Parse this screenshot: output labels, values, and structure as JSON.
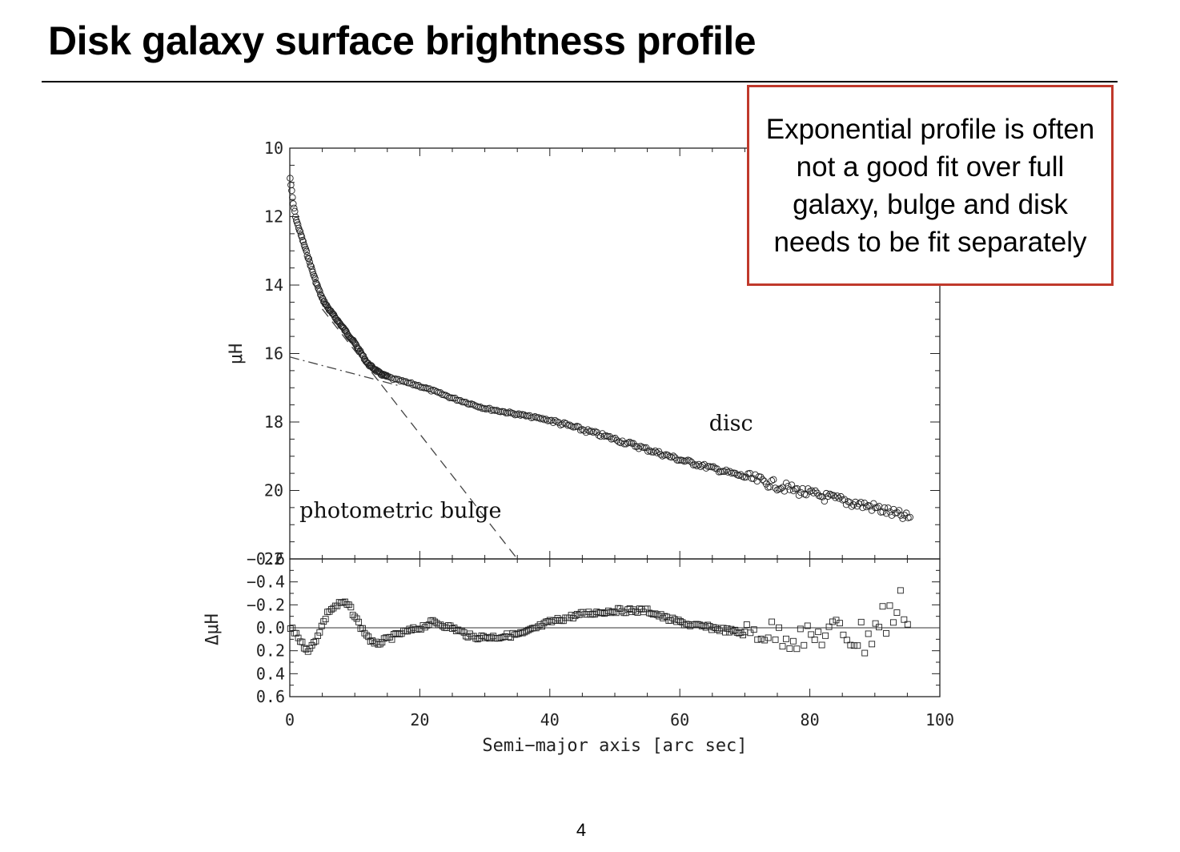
{
  "slide": {
    "title": "Disk galaxy surface brightness profile",
    "callout_text": "Exponential profile is often not a good fit over full galaxy, bulge and disk needs to be fit separately",
    "callout_border_color": "#c0392b",
    "page_number": "4"
  },
  "chart_data": [
    {
      "type": "scatter",
      "panel": "upper",
      "title": "",
      "xlabel": "",
      "ylabel": "μH",
      "xlim": [
        0,
        100
      ],
      "ylim": [
        22,
        10
      ],
      "y_inverted": true,
      "y_ticks": [
        10,
        12,
        14,
        16,
        18,
        20,
        22
      ],
      "marker": "open-circle",
      "profile_knots": [
        {
          "x": 0.0,
          "y": 10.8
        },
        {
          "x": 0.5,
          "y": 11.6
        },
        {
          "x": 1.0,
          "y": 12.1
        },
        {
          "x": 2.0,
          "y": 12.7
        },
        {
          "x": 3.0,
          "y": 13.3
        },
        {
          "x": 4.0,
          "y": 13.9
        },
        {
          "x": 5.0,
          "y": 14.4
        },
        {
          "x": 6.0,
          "y": 14.7
        },
        {
          "x": 8.0,
          "y": 15.2
        },
        {
          "x": 10.0,
          "y": 15.7
        },
        {
          "x": 12.0,
          "y": 16.3
        },
        {
          "x": 14.0,
          "y": 16.6
        },
        {
          "x": 16.0,
          "y": 16.75
        },
        {
          "x": 20.0,
          "y": 16.95
        },
        {
          "x": 25.0,
          "y": 17.3
        },
        {
          "x": 30.0,
          "y": 17.6
        },
        {
          "x": 40.0,
          "y": 17.95
        },
        {
          "x": 50.0,
          "y": 18.5
        },
        {
          "x": 60.0,
          "y": 19.1
        },
        {
          "x": 70.0,
          "y": 19.6
        },
        {
          "x": 80.0,
          "y": 20.1
        },
        {
          "x": 90.0,
          "y": 20.5
        },
        {
          "x": 95.0,
          "y": 20.8
        }
      ],
      "models": [
        {
          "name": "bulge",
          "style": "dashed",
          "points": [
            {
              "x": 5,
              "y": 14.7
            },
            {
              "x": 35,
              "y": 22
            }
          ]
        },
        {
          "name": "disc",
          "style": "dash-dot",
          "points": [
            {
              "x": 0,
              "y": 16.1
            },
            {
              "x": 17,
              "y": 16.95
            }
          ]
        }
      ],
      "annotations": [
        {
          "text": "disc",
          "x": 64.5,
          "y": 18.25
        },
        {
          "text": "photometric bulge",
          "x": 1.5,
          "y": 20.8
        }
      ]
    },
    {
      "type": "scatter",
      "panel": "lower",
      "title": "",
      "xlabel": "Semi−major axis [arc sec]",
      "ylabel": "ΔμH",
      "xlim": [
        0,
        100
      ],
      "ylim": [
        -0.6,
        0.6
      ],
      "y_inverted": true,
      "y_ticks": [
        -0.6,
        -0.4,
        -0.2,
        0.0,
        0.2,
        0.4,
        0.6
      ],
      "y_tick_labels": [
        "−0.6",
        "−0.4",
        "−0.2",
        "0.0",
        "0.2",
        "0.4",
        "0.6"
      ],
      "x_ticks": [
        0,
        20,
        40,
        60,
        80,
        100
      ],
      "reference_line": 0.0,
      "marker": "open-square",
      "residual_knots": [
        {
          "x": 0,
          "y": 0.0
        },
        {
          "x": 1,
          "y": 0.05
        },
        {
          "x": 2,
          "y": 0.15
        },
        {
          "x": 3,
          "y": 0.2
        },
        {
          "x": 4,
          "y": 0.1
        },
        {
          "x": 6,
          "y": -0.15
        },
        {
          "x": 8,
          "y": -0.22
        },
        {
          "x": 9,
          "y": -0.2
        },
        {
          "x": 11,
          "y": 0.0
        },
        {
          "x": 13,
          "y": 0.15
        },
        {
          "x": 15,
          "y": 0.1
        },
        {
          "x": 17,
          "y": 0.05
        },
        {
          "x": 20,
          "y": 0.0
        },
        {
          "x": 22,
          "y": -0.05
        },
        {
          "x": 25,
          "y": 0.0
        },
        {
          "x": 28,
          "y": 0.08
        },
        {
          "x": 32,
          "y": 0.08
        },
        {
          "x": 36,
          "y": 0.05
        },
        {
          "x": 40,
          "y": -0.05
        },
        {
          "x": 45,
          "y": -0.12
        },
        {
          "x": 50,
          "y": -0.15
        },
        {
          "x": 55,
          "y": -0.15
        },
        {
          "x": 58,
          "y": -0.08
        },
        {
          "x": 62,
          "y": -0.02
        },
        {
          "x": 65,
          "y": 0.0
        },
        {
          "x": 70,
          "y": 0.05
        },
        {
          "x": 72,
          "y": 0.03
        },
        {
          "x": 75,
          "y": 0.05
        },
        {
          "x": 80,
          "y": 0.1
        },
        {
          "x": 85,
          "y": 0.0
        },
        {
          "x": 88,
          "y": 0.1
        },
        {
          "x": 92,
          "y": -0.1
        },
        {
          "x": 95,
          "y": -0.2
        }
      ]
    }
  ]
}
